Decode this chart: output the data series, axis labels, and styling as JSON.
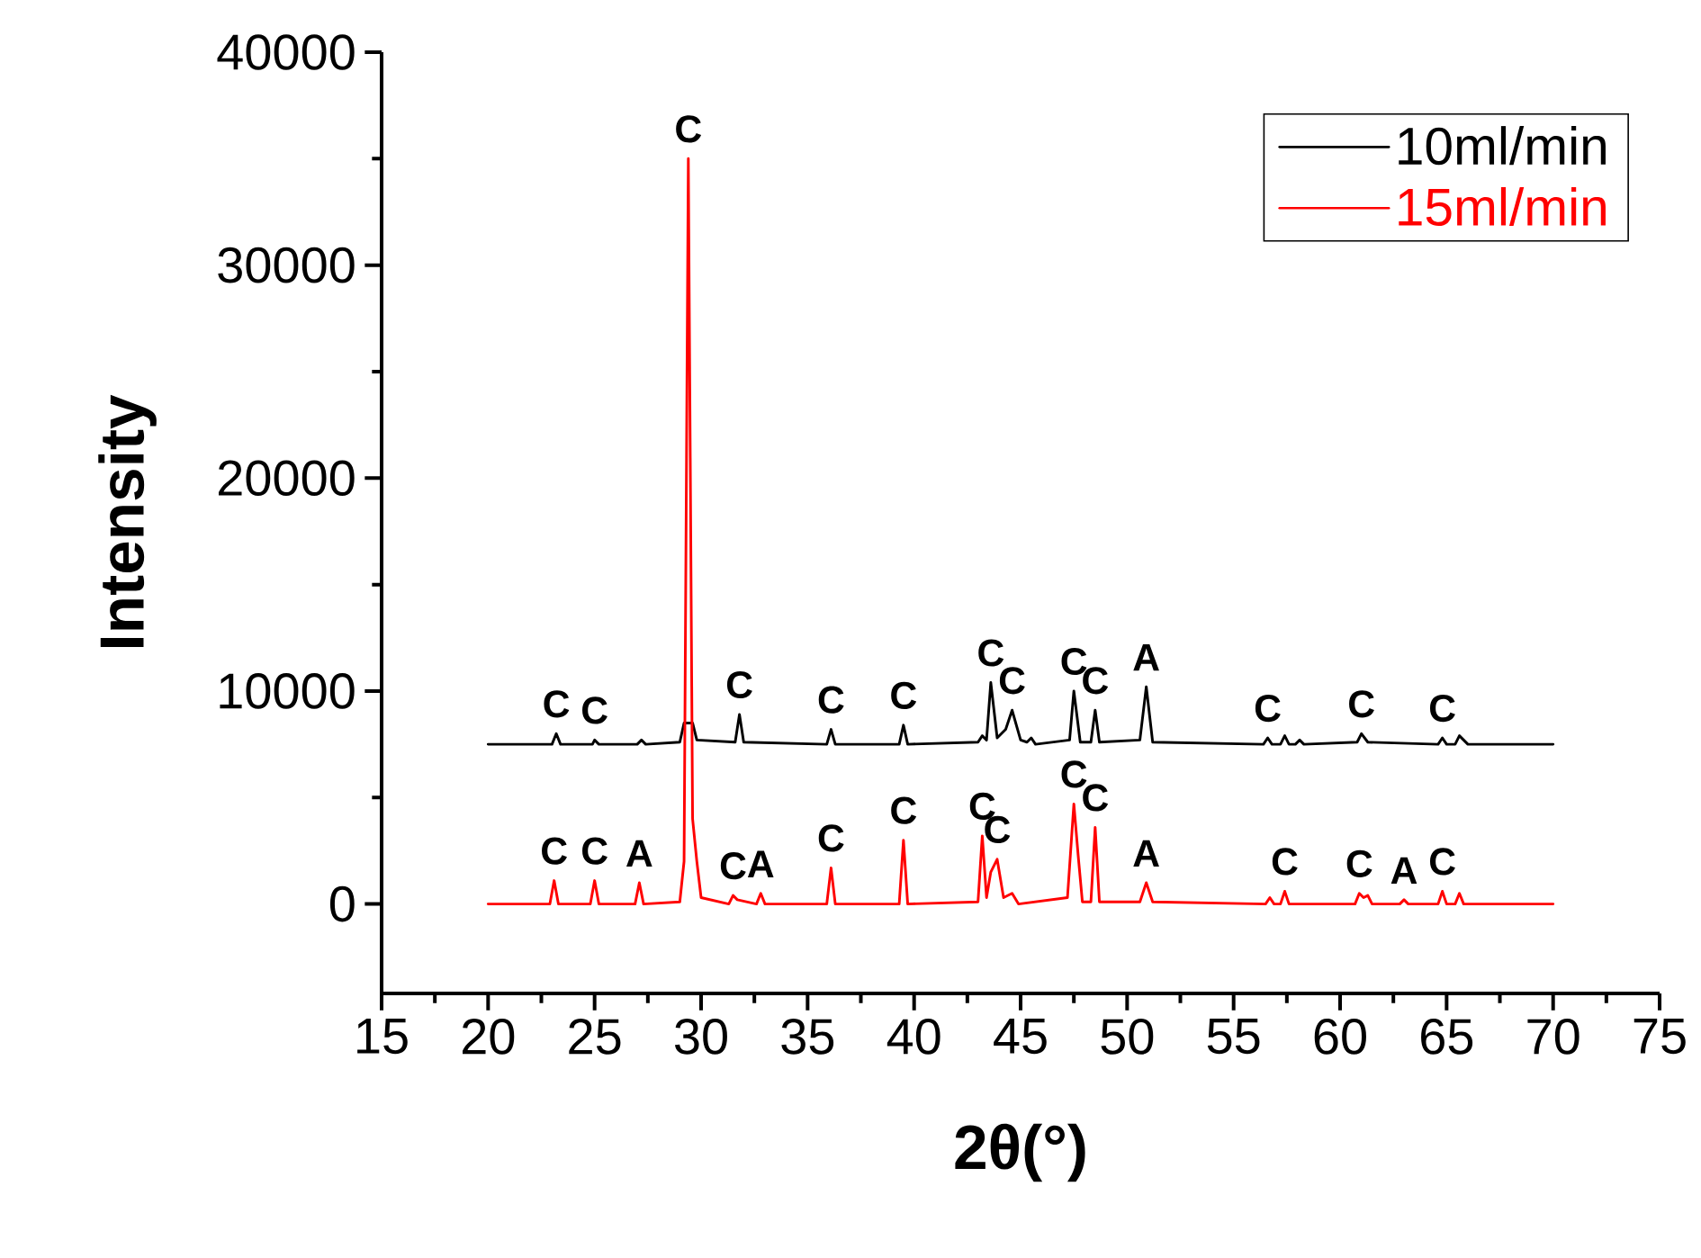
{
  "chart_data": {
    "type": "line",
    "xlabel": "2θ(°)",
    "ylabel": "Intensity",
    "xlim": [
      15,
      75
    ],
    "xticks": [
      15,
      20,
      25,
      30,
      35,
      40,
      45,
      50,
      55,
      60,
      65,
      70,
      75
    ],
    "ylim": [
      -4200,
      40000
    ],
    "yticks": [
      0,
      10000,
      20000,
      30000,
      40000
    ],
    "legend": "top right",
    "grid": false,
    "marker": "none",
    "line_style": "solid",
    "series": [
      {
        "name": "10ml/min",
        "color": "#000000",
        "x": [
          20,
          23.0,
          23.2,
          23.4,
          24.9,
          25.0,
          25.2,
          27.0,
          27.2,
          27.4,
          29.0,
          29.2,
          29.4,
          29.6,
          29.8,
          31.6,
          31.8,
          32.0,
          35.9,
          36.1,
          36.3,
          39.3,
          39.5,
          39.7,
          43.0,
          43.2,
          43.4,
          43.6,
          43.9,
          44.3,
          44.6,
          45.0,
          45.3,
          45.5,
          45.7,
          47.3,
          47.5,
          47.8,
          48.3,
          48.5,
          48.7,
          50.6,
          50.9,
          51.2,
          56.4,
          56.6,
          56.8,
          57.2,
          57.4,
          57.6,
          57.9,
          58.1,
          58.3,
          60.8,
          61.0,
          61.3,
          64.6,
          64.8,
          65.0,
          65.4,
          65.6,
          66.0,
          70
        ],
        "values": [
          7500,
          7500,
          8000,
          7500,
          7500,
          7700,
          7500,
          7500,
          7700,
          7500,
          7600,
          8500,
          null,
          8500,
          7700,
          7600,
          8900,
          7600,
          7500,
          8200,
          7500,
          7500,
          8400,
          7500,
          7600,
          7900,
          7700,
          10400,
          7800,
          8200,
          9100,
          7700,
          7600,
          7800,
          7500,
          7700,
          10000,
          7600,
          7600,
          9100,
          7600,
          7700,
          10200,
          7600,
          7500,
          7800,
          7500,
          7500,
          7900,
          7500,
          7500,
          7700,
          7500,
          7600,
          8000,
          7600,
          7500,
          7800,
          7500,
          7500,
          7900,
          7500,
          7500
        ]
      },
      {
        "name": "15ml/min",
        "color": "#ff0000",
        "x": [
          20,
          22.9,
          23.1,
          23.3,
          24.8,
          25.0,
          25.2,
          26.9,
          27.1,
          27.3,
          29.0,
          29.2,
          29.4,
          29.6,
          29.8,
          30.0,
          31.3,
          31.5,
          31.7,
          32.6,
          32.8,
          33.0,
          35.9,
          36.1,
          36.3,
          39.3,
          39.5,
          39.7,
          43.0,
          43.2,
          43.4,
          43.6,
          43.9,
          44.2,
          44.6,
          44.9,
          47.2,
          47.5,
          47.7,
          47.9,
          48.3,
          48.5,
          48.7,
          50.6,
          50.9,
          51.2,
          56.5,
          56.7,
          56.9,
          57.2,
          57.4,
          57.6,
          60.7,
          60.9,
          61.1,
          61.3,
          61.5,
          62.8,
          63.0,
          63.2,
          64.6,
          64.8,
          65.0,
          65.4,
          65.6,
          65.8,
          70
        ],
        "values": [
          0,
          0,
          1100,
          0,
          0,
          1100,
          0,
          0,
          1000,
          0,
          100,
          2000,
          35000,
          4000,
          2000,
          300,
          0,
          400,
          200,
          0,
          500,
          0,
          0,
          1700,
          0,
          0,
          3000,
          0,
          100,
          3200,
          300,
          1500,
          2100,
          300,
          500,
          0,
          300,
          4700,
          2300,
          100,
          100,
          3600,
          100,
          100,
          1000,
          100,
          0,
          300,
          0,
          0,
          600,
          0,
          0,
          500,
          300,
          400,
          0,
          0,
          200,
          0,
          0,
          600,
          0,
          0,
          500,
          0,
          0
        ]
      }
    ],
    "annotations": [
      {
        "text": "C",
        "x": 23.2,
        "y": 8000
      },
      {
        "text": "C",
        "x": 25.0,
        "y": 7700
      },
      {
        "text": "C",
        "x": 29.4,
        "y": 35000
      },
      {
        "text": "C",
        "x": 31.8,
        "y": 8900
      },
      {
        "text": "C",
        "x": 36.1,
        "y": 8200
      },
      {
        "text": "C",
        "x": 39.5,
        "y": 8400
      },
      {
        "text": "C",
        "x": 43.6,
        "y": 10400
      },
      {
        "text": "C",
        "x": 44.6,
        "y": 9100
      },
      {
        "text": "C",
        "x": 47.5,
        "y": 10000
      },
      {
        "text": "C",
        "x": 48.5,
        "y": 9100
      },
      {
        "text": "A",
        "x": 50.9,
        "y": 10200
      },
      {
        "text": "C",
        "x": 56.6,
        "y": 7800
      },
      {
        "text": "C",
        "x": 61.0,
        "y": 8000
      },
      {
        "text": "C",
        "x": 64.8,
        "y": 7800
      },
      {
        "text": "C",
        "x": 23.1,
        "y": 1100
      },
      {
        "text": "C",
        "x": 25.0,
        "y": 1100
      },
      {
        "text": "A",
        "x": 27.1,
        "y": 1000
      },
      {
        "text": "C",
        "x": 31.5,
        "y": 400
      },
      {
        "text": "A",
        "x": 32.8,
        "y": 500
      },
      {
        "text": "C",
        "x": 36.1,
        "y": 1700
      },
      {
        "text": "C",
        "x": 39.5,
        "y": 3000
      },
      {
        "text": "C",
        "x": 43.2,
        "y": 3200
      },
      {
        "text": "C",
        "x": 43.9,
        "y": 2100
      },
      {
        "text": "C",
        "x": 47.5,
        "y": 4700
      },
      {
        "text": "C",
        "x": 48.5,
        "y": 3600
      },
      {
        "text": "A",
        "x": 50.9,
        "y": 1000
      },
      {
        "text": "C",
        "x": 57.4,
        "y": 600
      },
      {
        "text": "C",
        "x": 60.9,
        "y": 500
      },
      {
        "text": "A",
        "x": 63.0,
        "y": 200
      },
      {
        "text": "C",
        "x": 64.8,
        "y": 600
      }
    ]
  }
}
